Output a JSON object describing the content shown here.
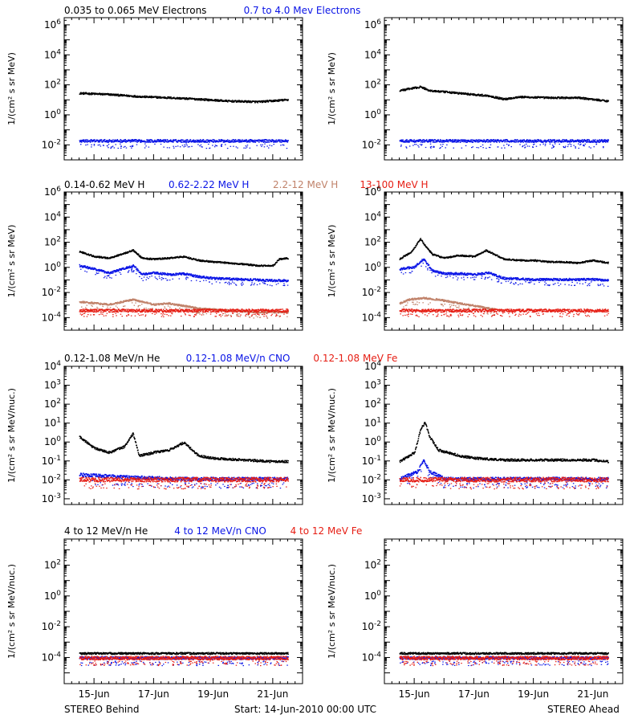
{
  "footer": {
    "left": "STEREO Behind",
    "center": "Start: 14-Jun-2010 00:00 UTC",
    "right": "STEREO Ahead"
  },
  "colors": {
    "black": "#000000",
    "blue": "#0a14e6",
    "tan": "#c0826a",
    "red": "#e61e14"
  },
  "chart_data": [
    {
      "type": "scatter",
      "row": 1,
      "spacecraft": "STEREO Behind",
      "ylabel": "1/(cm² s sr MeV)",
      "y_scale": "log",
      "ylim": [
        0.001,
        3000000
      ],
      "y_tick_labels": [
        "10^-2",
        "10^0",
        "10^2",
        "10^4",
        "10^6"
      ],
      "x_range_days": [
        0.5,
        7.5
      ],
      "x_tick_labels": [
        "15-Jun",
        "17-Jun",
        "19-Jun",
        "21-Jun"
      ],
      "legend": [
        {
          "text": "0.035 to 0.065 MeV Electrons",
          "color": "black"
        },
        {
          "text": "0.7 to 4.0 Mev Electrons",
          "color": "blue"
        }
      ],
      "series": [
        {
          "name": "0.035 to 0.065 MeV Electrons",
          "color": "black",
          "x": [
            0.5,
            1.5,
            2.5,
            3.5,
            4.5,
            5.5,
            6.5,
            7.5
          ],
          "y": [
            30,
            25,
            18,
            15,
            12,
            9,
            8,
            11
          ]
        },
        {
          "name": "0.7 to 4.0 Mev Electrons",
          "color": "blue",
          "x": [
            0.5,
            2,
            4,
            6,
            7.5
          ],
          "y": [
            0.02,
            0.02,
            0.02,
            0.02,
            0.02
          ]
        }
      ]
    },
    {
      "type": "scatter",
      "row": 1,
      "spacecraft": "STEREO Ahead",
      "ylabel": "1/(cm² s sr MeV)",
      "y_scale": "log",
      "ylim": [
        0.001,
        3000000
      ],
      "y_tick_labels": [
        "10^-2",
        "10^0",
        "10^2",
        "10^4",
        "10^6"
      ],
      "x_range_days": [
        0.5,
        7.5
      ],
      "x_tick_labels": [
        "15-Jun",
        "17-Jun",
        "19-Jun",
        "21-Jun"
      ],
      "series": [
        {
          "name": "0.035 to 0.065 MeV Electrons",
          "color": "black",
          "x": [
            0.5,
            1.2,
            1.5,
            2.5,
            3.5,
            4,
            4.5,
            5.5,
            6.5,
            7.5
          ],
          "y": [
            45,
            80,
            45,
            30,
            20,
            12,
            17,
            15,
            15,
            9
          ]
        },
        {
          "name": "0.7 to 4.0 Mev Electrons",
          "color": "blue",
          "x": [
            0.5,
            2,
            4,
            6,
            7.5
          ],
          "y": [
            0.02,
            0.02,
            0.02,
            0.02,
            0.02
          ]
        }
      ]
    },
    {
      "type": "scatter",
      "row": 2,
      "spacecraft": "STEREO Behind",
      "ylabel": "1/(cm² s sr MeV)",
      "y_scale": "log",
      "ylim": [
        1e-05,
        1000000
      ],
      "y_tick_labels": [
        "10^-4",
        "10^-2",
        "10^0",
        "10^2",
        "10^4",
        "10^6"
      ],
      "x_range_days": [
        0.5,
        7.5
      ],
      "x_tick_labels": [
        "15-Jun",
        "17-Jun",
        "19-Jun",
        "21-Jun"
      ],
      "legend": [
        {
          "text": "0.14-0.62 MeV H",
          "color": "black"
        },
        {
          "text": "0.62-2.22 MeV H",
          "color": "blue"
        },
        {
          "text": "2.2-12 MeV H",
          "color": "tan"
        },
        {
          "text": "13-100 MeV H",
          "color": "red"
        }
      ],
      "series": [
        {
          "name": "0.14-0.62 MeV H",
          "color": "black",
          "x": [
            0.5,
            1,
            1.5,
            2.3,
            2.6,
            3,
            3.5,
            4,
            4.5,
            5,
            5.5,
            6,
            6.5,
            7,
            7.2,
            7.5
          ],
          "y": [
            20,
            8,
            6,
            25,
            6,
            5,
            6,
            8,
            4,
            3,
            2.5,
            2,
            1.5,
            1.5,
            5,
            6
          ]
        },
        {
          "name": "0.62-2.22 MeV H",
          "color": "blue",
          "x": [
            0.5,
            1,
            1.5,
            2.3,
            2.6,
            3,
            3.5,
            4,
            4.5,
            5,
            6,
            7,
            7.5
          ],
          "y": [
            1.5,
            0.8,
            0.4,
            1.5,
            0.3,
            0.4,
            0.3,
            0.35,
            0.2,
            0.15,
            0.12,
            0.1,
            0.1
          ]
        },
        {
          "name": "2.2-12 MeV H",
          "color": "tan",
          "x": [
            0.5,
            1.5,
            2.3,
            3,
            3.5,
            4.5,
            5.5,
            6.5,
            7.5
          ],
          "y": [
            0.002,
            0.0012,
            0.003,
            0.0012,
            0.0015,
            0.0006,
            0.0004,
            0.0003,
            0.0003
          ]
        },
        {
          "name": "13-100 MeV H",
          "color": "red",
          "x": [
            0.5,
            2.5,
            4.5,
            6.5,
            7.5
          ],
          "y": [
            0.0004,
            0.0004,
            0.0004,
            0.0004,
            0.0004
          ]
        }
      ]
    },
    {
      "type": "scatter",
      "row": 2,
      "spacecraft": "STEREO Ahead",
      "ylabel": "1/(cm² s sr MeV)",
      "y_scale": "log",
      "ylim": [
        1e-05,
        1000000
      ],
      "y_tick_labels": [
        "10^-4",
        "10^-2",
        "10^0",
        "10^2",
        "10^4",
        "10^6"
      ],
      "x_range_days": [
        0.5,
        7.5
      ],
      "x_tick_labels": [
        "15-Jun",
        "17-Jun",
        "19-Jun",
        "21-Jun"
      ],
      "series": [
        {
          "name": "0.14-0.62 MeV H",
          "color": "black",
          "x": [
            0.5,
            0.9,
            1.2,
            1.35,
            1.6,
            2,
            2.5,
            3,
            3.4,
            4,
            4.5,
            5,
            5.5,
            6,
            6.5,
            7,
            7.5
          ],
          "y": [
            5,
            20,
            200,
            60,
            12,
            6,
            10,
            8,
            25,
            5,
            4,
            4,
            3,
            3,
            2.5,
            4,
            2.5
          ]
        },
        {
          "name": "0.62-2.22 MeV H",
          "color": "blue",
          "x": [
            0.5,
            1,
            1.3,
            1.6,
            2,
            2.5,
            3,
            3.5,
            4,
            5,
            6,
            7,
            7.5
          ],
          "y": [
            0.8,
            1.2,
            5,
            0.6,
            0.35,
            0.35,
            0.3,
            0.4,
            0.15,
            0.12,
            0.12,
            0.12,
            0.1
          ]
        },
        {
          "name": "2.2-12 MeV H",
          "color": "tan",
          "x": [
            0.5,
            0.8,
            1.3,
            1.8,
            2.5,
            3.2,
            3.7
          ],
          "y": [
            0.0015,
            0.003,
            0.004,
            0.003,
            0.0015,
            0.0008,
            0.0005
          ]
        },
        {
          "name": "13-100 MeV H",
          "color": "red",
          "x": [
            0.5,
            2.5,
            4.5,
            6.5,
            7.5
          ],
          "y": [
            0.0004,
            0.0004,
            0.0004,
            0.0004,
            0.0004
          ]
        }
      ]
    },
    {
      "type": "scatter",
      "row": 3,
      "spacecraft": "STEREO Behind",
      "ylabel": "1/(cm² s sr MeV/nuc.)",
      "y_scale": "log",
      "ylim": [
        0.0005,
        10000
      ],
      "y_tick_labels": [
        "10^-3",
        "10^-2",
        "10^-1",
        "10^0",
        "10^1",
        "10^2",
        "10^3",
        "10^4"
      ],
      "x_range_days": [
        0.5,
        7.5
      ],
      "x_tick_labels": [
        "15-Jun",
        "17-Jun",
        "19-Jun",
        "21-Jun"
      ],
      "legend": [
        {
          "text": "0.12-1.08 MeV/n He",
          "color": "black"
        },
        {
          "text": "0.12-1.08 MeV/n CNO",
          "color": "blue"
        },
        {
          "text": "0.12-1.08 MeV Fe",
          "color": "red"
        }
      ],
      "series": [
        {
          "name": "0.12-1.08 MeV/n He",
          "color": "black",
          "x": [
            0.5,
            1,
            1.5,
            2,
            2.3,
            2.5,
            3,
            3.5,
            4,
            4.5,
            5,
            6,
            7,
            7.5
          ],
          "y": [
            2,
            0.5,
            0.3,
            0.6,
            3,
            0.2,
            0.3,
            0.4,
            1,
            0.2,
            0.15,
            0.12,
            0.1,
            0.1
          ]
        },
        {
          "name": "0.12-1.08 MeV/n CNO",
          "color": "blue",
          "x": [
            0.5,
            2,
            4,
            6,
            7.5
          ],
          "y": [
            0.02,
            0.015,
            0.012,
            0.012,
            0.012
          ]
        },
        {
          "name": "0.12-1.08 MeV Fe",
          "color": "red",
          "x": [
            0.5,
            2,
            4,
            6,
            7.5
          ],
          "y": [
            0.011,
            0.011,
            0.011,
            0.011,
            0.011
          ]
        }
      ]
    },
    {
      "type": "scatter",
      "row": 3,
      "spacecraft": "STEREO Ahead",
      "ylabel": "1/(cm² s sr MeV/nuc.)",
      "y_scale": "log",
      "ylim": [
        0.0005,
        10000
      ],
      "y_tick_labels": [
        "10^-3",
        "10^-2",
        "10^-1",
        "10^0",
        "10^1",
        "10^2",
        "10^3",
        "10^4"
      ],
      "x_range_days": [
        0.5,
        7.5
      ],
      "x_tick_labels": [
        "15-Jun",
        "17-Jun",
        "19-Jun",
        "21-Jun"
      ],
      "series": [
        {
          "name": "0.12-1.08 MeV/n He",
          "color": "black",
          "x": [
            0.5,
            1,
            1.2,
            1.35,
            1.5,
            1.8,
            2.5,
            3,
            4,
            5,
            6,
            7,
            7.5
          ],
          "y": [
            0.1,
            0.3,
            5,
            12,
            2,
            0.4,
            0.2,
            0.15,
            0.12,
            0.12,
            0.12,
            0.12,
            0.1
          ]
        },
        {
          "name": "0.12-1.08 MeV/n CNO",
          "color": "blue",
          "x": [
            0.5,
            1.1,
            1.3,
            1.5,
            2,
            4,
            7.5
          ],
          "y": [
            0.012,
            0.03,
            0.12,
            0.03,
            0.012,
            0.012,
            0.012
          ]
        },
        {
          "name": "0.12-1.08 MeV Fe",
          "color": "red",
          "x": [
            0.5,
            2,
            4,
            6,
            7.5
          ],
          "y": [
            0.011,
            0.011,
            0.011,
            0.011,
            0.011
          ]
        }
      ]
    },
    {
      "type": "scatter",
      "row": 4,
      "spacecraft": "STEREO Behind",
      "ylabel": "1/(cm² s sr MeV/nuc.)",
      "y_scale": "log",
      "ylim": [
        2e-06,
        5000
      ],
      "y_tick_labels": [
        "10^-4",
        "10^-2",
        "10^0",
        "10^2"
      ],
      "x_range_days": [
        0.5,
        7.5
      ],
      "x_tick_labels": [
        "15-Jun",
        "17-Jun",
        "19-Jun",
        "21-Jun"
      ],
      "legend": [
        {
          "text": "4 to 12 MeV/n He",
          "color": "black"
        },
        {
          "text": "4 to 12 MeV/n CNO",
          "color": "blue"
        },
        {
          "text": "4 to 12 MeV Fe",
          "color": "red"
        }
      ],
      "series": [
        {
          "name": "4 to 12 MeV/n He",
          "color": "black",
          "x": [
            0.5,
            2,
            4,
            6,
            7.5
          ],
          "y": [
            0.0002,
            0.0002,
            0.0002,
            0.0002,
            0.0002
          ]
        },
        {
          "name": "4 to 12 MeV/n CNO",
          "color": "blue",
          "x": [
            0.5,
            7.5
          ],
          "y": [
            0.0001,
            0.0001
          ]
        },
        {
          "name": "4 to 12 MeV Fe",
          "color": "red",
          "x": [
            0.5,
            7.5
          ],
          "y": [
            0.0001,
            0.0001
          ]
        }
      ]
    },
    {
      "type": "scatter",
      "row": 4,
      "spacecraft": "STEREO Ahead",
      "ylabel": "1/(cm² s sr MeV/nuc.)",
      "y_scale": "log",
      "ylim": [
        2e-06,
        5000
      ],
      "y_tick_labels": [
        "10^-4",
        "10^-2",
        "10^0",
        "10^2"
      ],
      "x_range_days": [
        0.5,
        7.5
      ],
      "x_tick_labels": [
        "15-Jun",
        "17-Jun",
        "19-Jun",
        "21-Jun"
      ],
      "series": [
        {
          "name": "4 to 12 MeV/n He",
          "color": "black",
          "x": [
            0.5,
            2,
            4,
            6,
            7.5
          ],
          "y": [
            0.0002,
            0.0002,
            0.0002,
            0.0002,
            0.0002
          ]
        },
        {
          "name": "4 to 12 MeV/n CNO",
          "color": "blue",
          "x": [
            0.5,
            7.5
          ],
          "y": [
            0.0001,
            0.0001
          ]
        },
        {
          "name": "4 to 12 MeV Fe",
          "color": "red",
          "x": [
            0.5,
            7.5
          ],
          "y": [
            0.0001,
            0.0001
          ]
        }
      ]
    }
  ]
}
